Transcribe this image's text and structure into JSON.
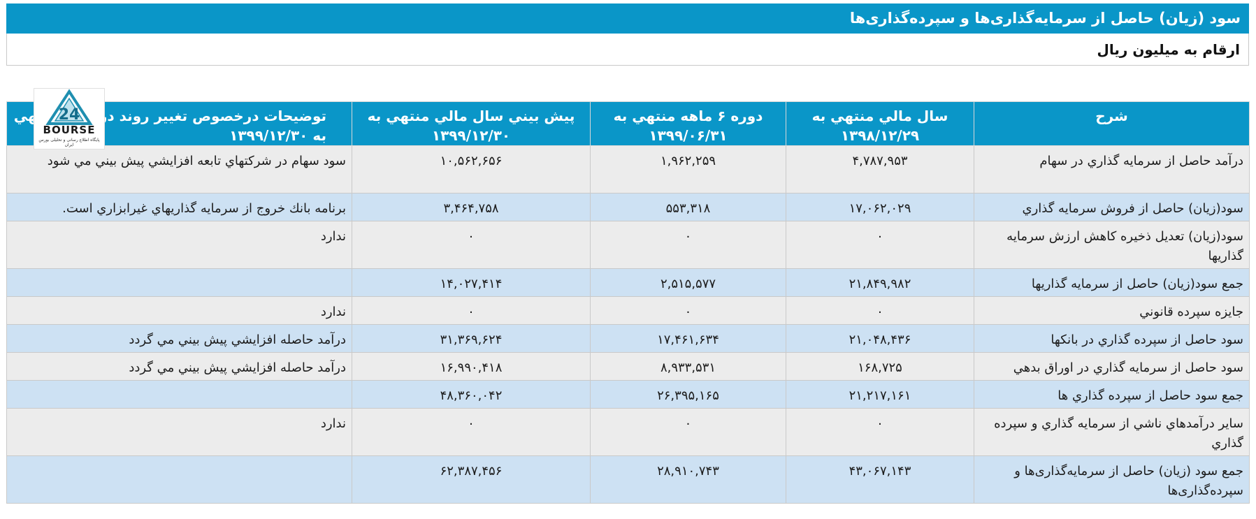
{
  "title": "سود (زیان) حاصل از سرمایه‌گذاری‌ها و سپرده‌گذاری‌ها",
  "unit_label": "ارقام به میلیون ریال",
  "logo": {
    "text": "BOURSE",
    "subtext": "پایگاه اطلاع رسانی و تحلیلی بورس ایران",
    "icon": "bourse24-logo-icon"
  },
  "colors": {
    "header": "#0a96c8",
    "row_gray": "#ececec",
    "row_blue": "#cde1f3"
  },
  "table": {
    "headers": {
      "description": "شرح",
      "fy1398": "سال مالي منتهي به ۱۳۹۸/۱۲/۲۹",
      "h6_1399": "دوره ۶ ماهه منتهي به ۱۳۹۹/۰۶/۳۱",
      "forecast1399": "پيش بيني سال مالي منتهي به ۱۳۹۹/۱۲/۳۰",
      "notes": "توضیحات درخصوص تغییر روند در دوره منتهي به ۱۳۹۹/۱۲/۳۰"
    },
    "rows": [
      {
        "desc": "درآمد حاصل از سرمايه گذاري در سهام",
        "fy1398": "۴,۷۸۷,۹۵۳",
        "h6_1399": "۱,۹۶۲,۲۵۹",
        "forecast1399": "۱۰,۵۶۲,۶۵۶",
        "notes": "سود سهام در شرکتهاي تابعه افزايشي پيش بيني مي شود"
      },
      {
        "desc": "سود(زيان) حاصل از فروش سرمايه گذاري",
        "fy1398": "۱۷,۰۶۲,۰۲۹",
        "h6_1399": "۵۵۳,۳۱۸",
        "forecast1399": "۳,۴۶۴,۷۵۸",
        "notes": "برنامه بانك خروج از سرمايه گذاريهاي غيرابزاري است."
      },
      {
        "desc": "سود(زيان) تعديل ذخيره كاهش ارزش سرمايه گذاريها",
        "fy1398": "۰",
        "h6_1399": "۰",
        "forecast1399": "۰",
        "notes": "ندارد"
      },
      {
        "desc": "جمع سود(زيان) حاصل از سرمايه گذاريها",
        "fy1398": "۲۱,۸۴۹,۹۸۲",
        "h6_1399": "۲,۵۱۵,۵۷۷",
        "forecast1399": "۱۴,۰۲۷,۴۱۴",
        "notes": ""
      },
      {
        "desc": "جايزه سپرده قانوني",
        "fy1398": "۰",
        "h6_1399": "۰",
        "forecast1399": "۰",
        "notes": "ندارد"
      },
      {
        "desc": "سود حاصل از سپرده گذاري در بانكها",
        "fy1398": "۲۱,۰۴۸,۴۳۶",
        "h6_1399": "۱۷,۴۶۱,۶۳۴",
        "forecast1399": "۳۱,۳۶۹,۶۲۴",
        "notes": "درآمد حاصله افزايشي پيش بيني مي گردد"
      },
      {
        "desc": "سود حاصل از سرمايه گذاري در اوراق بدهي",
        "fy1398": "۱۶۸,۷۲۵",
        "h6_1399": "۸,۹۳۳,۵۳۱",
        "forecast1399": "۱۶,۹۹۰,۴۱۸",
        "notes": "درآمد حاصله افزايشي پيش بيني مي گردد"
      },
      {
        "desc": "جمع سود حاصل از سپرده گذاري ها",
        "fy1398": "۲۱,۲۱۷,۱۶۱",
        "h6_1399": "۲۶,۳۹۵,۱۶۵",
        "forecast1399": "۴۸,۳۶۰,۰۴۲",
        "notes": ""
      },
      {
        "desc": "ساير درآمدهاي ناشي از سرمايه گذاري و سپرده گذاري",
        "fy1398": "۰",
        "h6_1399": "۰",
        "forecast1399": "۰",
        "notes": "ندارد"
      },
      {
        "desc": "جمع سود (زيان) حاصل از سرمايه‌گذاری‌ها و سپرده‌گذاری‌ها",
        "fy1398": "۴۳,۰۶۷,۱۴۳",
        "h6_1399": "۲۸,۹۱۰,۷۴۳",
        "forecast1399": "۶۲,۳۸۷,۴۵۶",
        "notes": ""
      }
    ]
  }
}
